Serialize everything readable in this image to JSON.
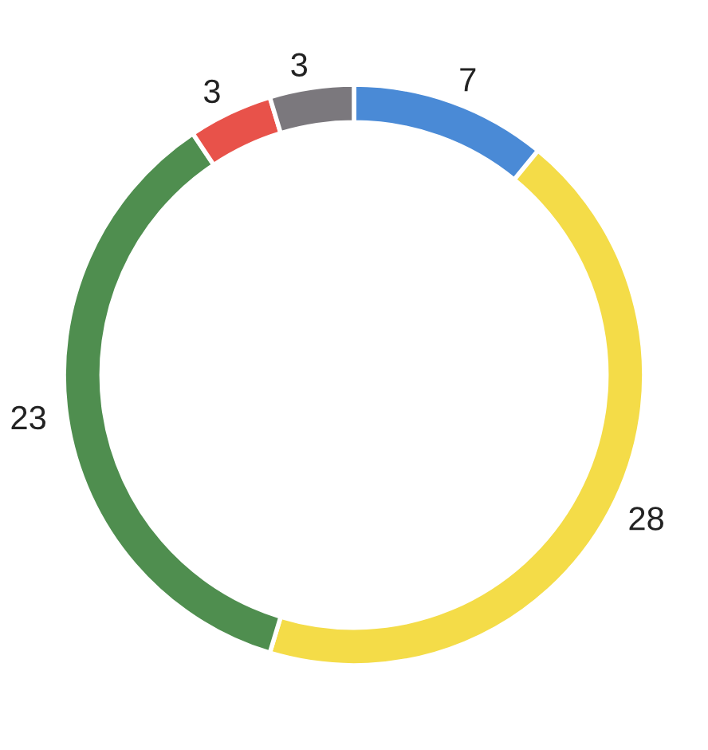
{
  "chart_data": {
    "type": "donut",
    "categories": [
      null,
      null,
      null,
      null,
      null
    ],
    "values": [
      7,
      28,
      23,
      3,
      3
    ],
    "colors": [
      "#4a8ad6",
      "#f4dc48",
      "#4f8e4f",
      "#e8524a",
      "#7b787d"
    ],
    "data_labels": true
  }
}
